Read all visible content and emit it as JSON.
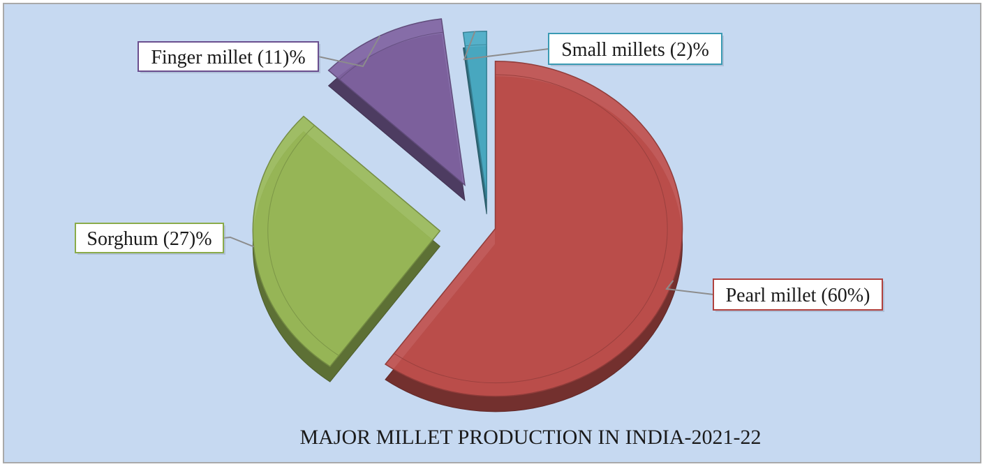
{
  "chart_data": {
    "type": "pie",
    "title": "MAJOR MILLET PRODUCTION IN INDIA-2021-22",
    "slices": [
      {
        "label": "Pearl millet (60%)",
        "value": 60,
        "color": "#c0504d"
      },
      {
        "label": "Sorghum (27)%",
        "value": 27,
        "color": "#9bbb59"
      },
      {
        "label": "Finger millet (11)%",
        "value": 11,
        "color": "#8064a2"
      },
      {
        "label": "Small millets (2)%",
        "value": 2,
        "color": "#4bacc6"
      }
    ],
    "style": "3d-exploded",
    "legend": "none",
    "labels": "callouts"
  }
}
